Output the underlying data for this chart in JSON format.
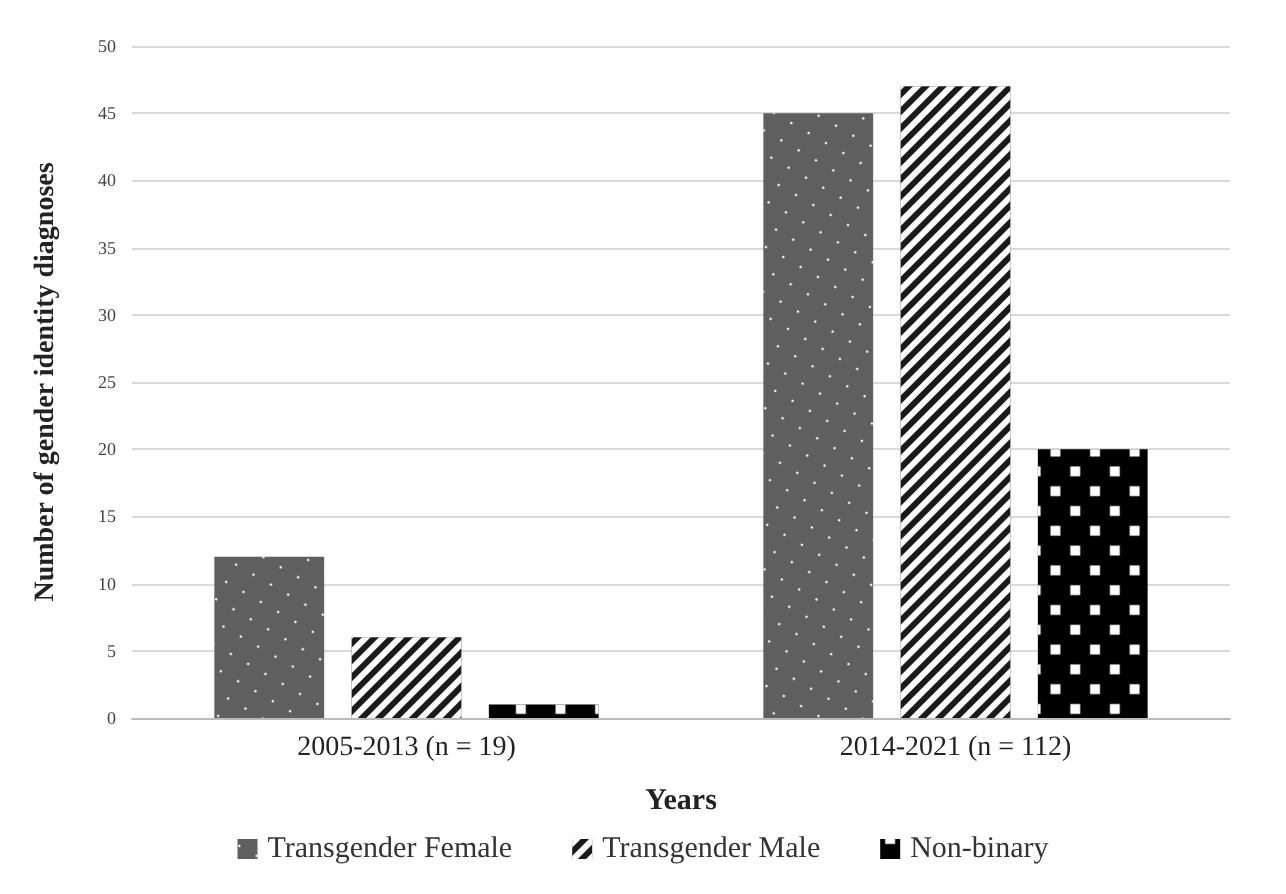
{
  "chart_data": {
    "type": "bar",
    "xlabel": "Years",
    "ylabel": "Number of gender identity diagnoses",
    "categories": [
      "2005-2013 (n = 19)",
      "2014-2021 (n = 112)"
    ],
    "series": [
      {
        "name": "Transgender Female",
        "color": "#5f5f5f",
        "values": [
          12,
          45
        ]
      },
      {
        "name": "Transgender Male",
        "color": "#1a1a1a",
        "values": [
          6,
          47
        ]
      },
      {
        "name": "Non-binary",
        "color": "#000000",
        "values": [
          1,
          20
        ]
      }
    ],
    "ylim": [
      0,
      50
    ],
    "yticks": [
      0,
      5,
      10,
      15,
      20,
      25,
      30,
      35,
      40,
      45,
      50
    ],
    "grid": "y",
    "legend": "bottom"
  }
}
